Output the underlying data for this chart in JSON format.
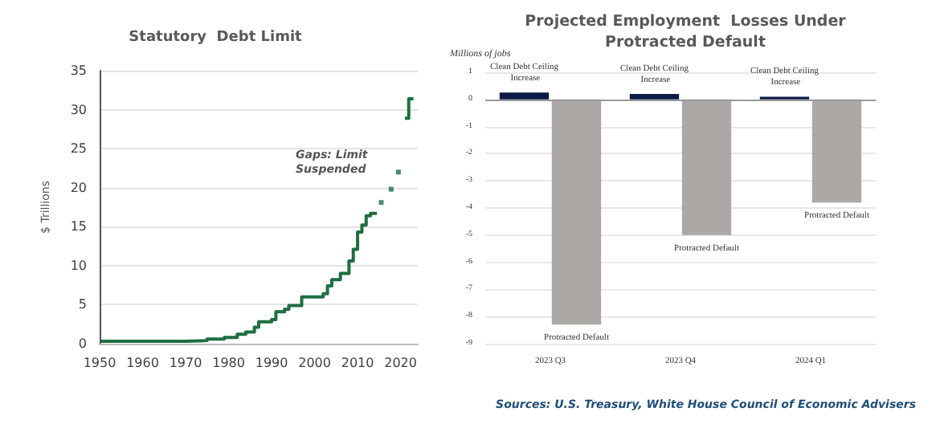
{
  "chart_data": [
    {
      "type": "line",
      "title": "Statutory  Debt Limit",
      "ylabel": "$ Trillions",
      "xlim": [
        1950,
        2024
      ],
      "xticks": [
        1950,
        1960,
        1970,
        1980,
        1990,
        2000,
        2010,
        2020
      ],
      "ylim": [
        0,
        35
      ],
      "yticks": [
        0,
        5,
        10,
        15,
        20,
        25,
        30,
        35
      ],
      "grid": "y",
      "legend": false,
      "marker": "none",
      "annotations": [
        "Gaps: Limit Suspended"
      ],
      "series": [
        {
          "color": "#1e6e42",
          "x": [
            1950,
            1970,
            1970,
            1975,
            1975,
            1979,
            1979,
            1982,
            1982,
            1984,
            1984,
            1986,
            1986,
            1987,
            1987,
            1990,
            1990,
            1991,
            1991,
            1993,
            1993,
            1994,
            1994,
            1997,
            1997,
            2002,
            2002,
            2003,
            2003,
            2004,
            2004,
            2006,
            2006,
            2008,
            2008,
            2009,
            2009,
            2010,
            2010,
            2011,
            2011,
            2012,
            2012,
            2013,
            2013,
            2014.5,
            2014.7,
            2021,
            2021.9,
            2021.9,
            2023
          ],
          "values": [
            0.3,
            0.3,
            0.4,
            0.4,
            0.6,
            0.6,
            0.8,
            0.8,
            1.2,
            1.2,
            1.5,
            1.5,
            2.1,
            2.1,
            2.8,
            2.8,
            3.1,
            3.1,
            4.1,
            4.1,
            4.4,
            4.4,
            4.9,
            4.9,
            6.0,
            6.0,
            6.4,
            6.4,
            7.4,
            7.4,
            8.2,
            8.2,
            9.0,
            9.0,
            10.6,
            10.6,
            12.1,
            12.1,
            14.3,
            14.3,
            15.2,
            15.2,
            16.4,
            16.4,
            16.7,
            16.7,
            null,
            28.9,
            28.9,
            31.4,
            31.4
          ]
        },
        {
          "type": "scatter",
          "marker": "square",
          "color": "#1e6e42",
          "x": [
            2015.5,
            2017.8,
            2019.5
          ],
          "values": [
            18.1,
            19.8,
            22
          ]
        }
      ]
    },
    {
      "type": "bar",
      "title": "Projected Employment  Losses Under\nProtracted Default",
      "ylabel": "Millions of jobs",
      "categories": [
        "2023 Q3",
        "2023 Q4",
        "2024 Q1"
      ],
      "ylim": [
        -9,
        1
      ],
      "yticks": [
        -9,
        -8,
        -7,
        -6,
        -5,
        -4,
        -3,
        -2,
        -1,
        0,
        1
      ],
      "grid": "y",
      "legend": false,
      "annotations": [
        "Sources: U.S. Treasury, White House Council of Economic Advisers"
      ],
      "series": [
        {
          "name": "Clean Debt Ceiling Increase",
          "color": "#0d1b45",
          "values": [
            0.25,
            0.2,
            0.1
          ]
        },
        {
          "name": "Protracted Default",
          "color": "#aca8a6",
          "values": [
            -8.3,
            -5.0,
            -3.8
          ]
        }
      ]
    }
  ]
}
